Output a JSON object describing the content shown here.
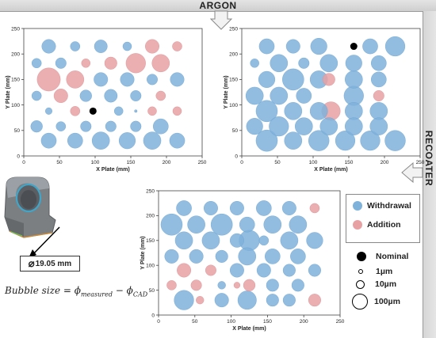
{
  "banner": {
    "top": "ARGON",
    "right": "RECOATER"
  },
  "chart_data": [
    {
      "type": "scatter",
      "xlabel": "X Plate (mm)",
      "ylabel": "Y Plate (mm)",
      "xlim": [
        0,
        250
      ],
      "ylim": [
        0,
        250
      ],
      "xticks": [
        0,
        50,
        100,
        150,
        200,
        250
      ],
      "yticks": [
        0,
        50,
        100,
        150,
        200,
        250
      ],
      "points": [
        {
          "x": 35,
          "y": 215,
          "s": 25,
          "c": "withdrawal"
        },
        {
          "x": 72,
          "y": 215,
          "s": 12,
          "c": "withdrawal"
        },
        {
          "x": 108,
          "y": 215,
          "s": 22,
          "c": "withdrawal"
        },
        {
          "x": 145,
          "y": 215,
          "s": 10,
          "c": "withdrawal"
        },
        {
          "x": 180,
          "y": 215,
          "s": 25,
          "c": "addition"
        },
        {
          "x": 215,
          "y": 215,
          "s": 12,
          "c": "addition"
        },
        {
          "x": 18,
          "y": 182,
          "s": 12,
          "c": "withdrawal"
        },
        {
          "x": 52,
          "y": 182,
          "s": 15,
          "c": "withdrawal"
        },
        {
          "x": 87,
          "y": 182,
          "s": 10,
          "c": "addition"
        },
        {
          "x": 122,
          "y": 182,
          "s": 20,
          "c": "addition"
        },
        {
          "x": 157,
          "y": 182,
          "s": 50,
          "c": "addition"
        },
        {
          "x": 192,
          "y": 182,
          "s": 40,
          "c": "addition"
        },
        {
          "x": 35,
          "y": 150,
          "s": 70,
          "c": "addition"
        },
        {
          "x": 72,
          "y": 150,
          "s": 40,
          "c": "addition"
        },
        {
          "x": 108,
          "y": 150,
          "s": 25,
          "c": "withdrawal"
        },
        {
          "x": 145,
          "y": 150,
          "s": 25,
          "c": "withdrawal"
        },
        {
          "x": 180,
          "y": 150,
          "s": 15,
          "c": "withdrawal"
        },
        {
          "x": 215,
          "y": 150,
          "s": 25,
          "c": "withdrawal"
        },
        {
          "x": 18,
          "y": 118,
          "s": 12,
          "c": "withdrawal"
        },
        {
          "x": 52,
          "y": 118,
          "s": 25,
          "c": "addition"
        },
        {
          "x": 87,
          "y": 118,
          "s": 18,
          "c": "withdrawal"
        },
        {
          "x": 122,
          "y": 118,
          "s": 22,
          "c": "withdrawal"
        },
        {
          "x": 157,
          "y": 118,
          "s": 15,
          "c": "withdrawal"
        },
        {
          "x": 192,
          "y": 118,
          "s": 12,
          "c": "addition"
        },
        {
          "x": 35,
          "y": 88,
          "s": 6,
          "c": "withdrawal"
        },
        {
          "x": 72,
          "y": 88,
          "s": 12,
          "c": "addition"
        },
        {
          "x": 97,
          "y": 88,
          "s": 0,
          "c": "nominal"
        },
        {
          "x": 133,
          "y": 88,
          "s": 10,
          "c": "withdrawal"
        },
        {
          "x": 157,
          "y": 88,
          "s": 1,
          "c": "withdrawal"
        },
        {
          "x": 180,
          "y": 88,
          "s": 10,
          "c": "addition"
        },
        {
          "x": 215,
          "y": 88,
          "s": 10,
          "c": "addition"
        },
        {
          "x": 18,
          "y": 58,
          "s": 18,
          "c": "withdrawal"
        },
        {
          "x": 52,
          "y": 58,
          "s": 12,
          "c": "withdrawal"
        },
        {
          "x": 87,
          "y": 58,
          "s": 15,
          "c": "withdrawal"
        },
        {
          "x": 122,
          "y": 58,
          "s": 15,
          "c": "withdrawal"
        },
        {
          "x": 157,
          "y": 58,
          "s": 15,
          "c": "withdrawal"
        },
        {
          "x": 192,
          "y": 58,
          "s": 30,
          "c": "withdrawal"
        },
        {
          "x": 35,
          "y": 30,
          "s": 30,
          "c": "withdrawal"
        },
        {
          "x": 72,
          "y": 30,
          "s": 30,
          "c": "withdrawal"
        },
        {
          "x": 108,
          "y": 30,
          "s": 40,
          "c": "withdrawal"
        },
        {
          "x": 145,
          "y": 30,
          "s": 35,
          "c": "withdrawal"
        },
        {
          "x": 180,
          "y": 30,
          "s": 40,
          "c": "withdrawal"
        },
        {
          "x": 215,
          "y": 30,
          "s": 30,
          "c": "withdrawal"
        }
      ]
    },
    {
      "type": "scatter",
      "xlabel": "X Plate (mm)",
      "ylabel": "Y Plate (mm)",
      "xlim": [
        0,
        250
      ],
      "ylim": [
        0,
        250
      ],
      "xticks": [
        0,
        50,
        100,
        150,
        200,
        250
      ],
      "yticks": [
        0,
        50,
        100,
        150,
        200,
        250
      ],
      "points": [
        {
          "x": 35,
          "y": 215,
          "s": 30,
          "c": "withdrawal"
        },
        {
          "x": 72,
          "y": 215,
          "s": 25,
          "c": "withdrawal"
        },
        {
          "x": 108,
          "y": 215,
          "s": 35,
          "c": "withdrawal"
        },
        {
          "x": 157,
          "y": 215,
          "s": 0,
          "c": "nominal"
        },
        {
          "x": 180,
          "y": 215,
          "s": 30,
          "c": "withdrawal"
        },
        {
          "x": 215,
          "y": 215,
          "s": 50,
          "c": "withdrawal"
        },
        {
          "x": 18,
          "y": 182,
          "s": 10,
          "c": "withdrawal"
        },
        {
          "x": 52,
          "y": 182,
          "s": 40,
          "c": "withdrawal"
        },
        {
          "x": 87,
          "y": 182,
          "s": 15,
          "c": "withdrawal"
        },
        {
          "x": 122,
          "y": 182,
          "s": 40,
          "c": "withdrawal"
        },
        {
          "x": 157,
          "y": 182,
          "s": 35,
          "c": "withdrawal"
        },
        {
          "x": 192,
          "y": 182,
          "s": 30,
          "c": "withdrawal"
        },
        {
          "x": 35,
          "y": 150,
          "s": 35,
          "c": "withdrawal"
        },
        {
          "x": 72,
          "y": 150,
          "s": 60,
          "c": "withdrawal"
        },
        {
          "x": 108,
          "y": 150,
          "s": 40,
          "c": "withdrawal"
        },
        {
          "x": 122,
          "y": 150,
          "s": 20,
          "c": "addition"
        },
        {
          "x": 157,
          "y": 150,
          "s": 40,
          "c": "withdrawal"
        },
        {
          "x": 192,
          "y": 150,
          "s": 30,
          "c": "withdrawal"
        },
        {
          "x": 18,
          "y": 118,
          "s": 40,
          "c": "withdrawal"
        },
        {
          "x": 52,
          "y": 118,
          "s": 40,
          "c": "withdrawal"
        },
        {
          "x": 87,
          "y": 118,
          "s": 30,
          "c": "withdrawal"
        },
        {
          "x": 157,
          "y": 118,
          "s": 50,
          "c": "withdrawal"
        },
        {
          "x": 192,
          "y": 118,
          "s": 15,
          "c": "addition"
        },
        {
          "x": 35,
          "y": 88,
          "s": 60,
          "c": "withdrawal"
        },
        {
          "x": 72,
          "y": 88,
          "s": 40,
          "c": "withdrawal"
        },
        {
          "x": 108,
          "y": 88,
          "s": 40,
          "c": "withdrawal"
        },
        {
          "x": 125,
          "y": 88,
          "s": 45,
          "c": "addition"
        },
        {
          "x": 157,
          "y": 88,
          "s": 40,
          "c": "withdrawal"
        },
        {
          "x": 192,
          "y": 88,
          "s": 40,
          "c": "withdrawal"
        },
        {
          "x": 18,
          "y": 58,
          "s": 35,
          "c": "withdrawal"
        },
        {
          "x": 52,
          "y": 58,
          "s": 50,
          "c": "withdrawal"
        },
        {
          "x": 87,
          "y": 58,
          "s": 40,
          "c": "withdrawal"
        },
        {
          "x": 122,
          "y": 58,
          "s": 40,
          "c": "withdrawal"
        },
        {
          "x": 157,
          "y": 58,
          "s": 40,
          "c": "withdrawal"
        },
        {
          "x": 192,
          "y": 58,
          "s": 40,
          "c": "withdrawal"
        },
        {
          "x": 35,
          "y": 30,
          "s": 60,
          "c": "withdrawal"
        },
        {
          "x": 72,
          "y": 30,
          "s": 40,
          "c": "withdrawal"
        },
        {
          "x": 108,
          "y": 30,
          "s": 55,
          "c": "withdrawal"
        },
        {
          "x": 145,
          "y": 30,
          "s": 50,
          "c": "withdrawal"
        },
        {
          "x": 180,
          "y": 30,
          "s": 50,
          "c": "withdrawal"
        },
        {
          "x": 215,
          "y": 30,
          "s": 55,
          "c": "withdrawal"
        }
      ]
    },
    {
      "type": "scatter",
      "xlabel": "X Plate (mm)",
      "ylabel": "Y Plate (mm)",
      "xlim": [
        0,
        250
      ],
      "ylim": [
        0,
        250
      ],
      "xticks": [
        0,
        50,
        100,
        150,
        200,
        250
      ],
      "yticks": [
        0,
        50,
        100,
        150,
        200,
        250
      ],
      "points": [
        {
          "x": 35,
          "y": 215,
          "s": 30,
          "c": "withdrawal"
        },
        {
          "x": 72,
          "y": 215,
          "s": 25,
          "c": "withdrawal"
        },
        {
          "x": 108,
          "y": 215,
          "s": 25,
          "c": "withdrawal"
        },
        {
          "x": 145,
          "y": 215,
          "s": 30,
          "c": "withdrawal"
        },
        {
          "x": 180,
          "y": 215,
          "s": 25,
          "c": "withdrawal"
        },
        {
          "x": 215,
          "y": 215,
          "s": 12,
          "c": "addition"
        },
        {
          "x": 18,
          "y": 182,
          "s": 60,
          "c": "withdrawal"
        },
        {
          "x": 52,
          "y": 182,
          "s": 40,
          "c": "withdrawal"
        },
        {
          "x": 87,
          "y": 182,
          "s": 60,
          "c": "withdrawal"
        },
        {
          "x": 122,
          "y": 182,
          "s": 30,
          "c": "withdrawal"
        },
        {
          "x": 157,
          "y": 182,
          "s": 40,
          "c": "withdrawal"
        },
        {
          "x": 192,
          "y": 182,
          "s": 40,
          "c": "withdrawal"
        },
        {
          "x": 35,
          "y": 150,
          "s": 40,
          "c": "withdrawal"
        },
        {
          "x": 72,
          "y": 150,
          "s": 40,
          "c": "withdrawal"
        },
        {
          "x": 108,
          "y": 150,
          "s": 25,
          "c": "withdrawal"
        },
        {
          "x": 125,
          "y": 150,
          "s": 55,
          "c": "withdrawal"
        },
        {
          "x": 145,
          "y": 150,
          "s": 12,
          "c": "withdrawal"
        },
        {
          "x": 180,
          "y": 150,
          "s": 40,
          "c": "withdrawal"
        },
        {
          "x": 215,
          "y": 150,
          "s": 35,
          "c": "withdrawal"
        },
        {
          "x": 18,
          "y": 118,
          "s": 25,
          "c": "withdrawal"
        },
        {
          "x": 52,
          "y": 118,
          "s": 25,
          "c": "withdrawal"
        },
        {
          "x": 87,
          "y": 118,
          "s": 20,
          "c": "withdrawal"
        },
        {
          "x": 122,
          "y": 118,
          "s": 40,
          "c": "withdrawal"
        },
        {
          "x": 157,
          "y": 118,
          "s": 30,
          "c": "withdrawal"
        },
        {
          "x": 192,
          "y": 118,
          "s": 30,
          "c": "withdrawal"
        },
        {
          "x": 35,
          "y": 90,
          "s": 25,
          "c": "addition"
        },
        {
          "x": 72,
          "y": 90,
          "s": 15,
          "c": "addition"
        },
        {
          "x": 108,
          "y": 90,
          "s": 25,
          "c": "withdrawal"
        },
        {
          "x": 145,
          "y": 90,
          "s": 25,
          "c": "withdrawal"
        },
        {
          "x": 180,
          "y": 90,
          "s": 20,
          "c": "withdrawal"
        },
        {
          "x": 215,
          "y": 90,
          "s": 20,
          "c": "withdrawal"
        },
        {
          "x": 18,
          "y": 60,
          "s": 12,
          "c": "addition"
        },
        {
          "x": 52,
          "y": 60,
          "s": 15,
          "c": "addition"
        },
        {
          "x": 87,
          "y": 60,
          "s": 8,
          "c": "withdrawal"
        },
        {
          "x": 108,
          "y": 60,
          "s": 5,
          "c": "addition"
        },
        {
          "x": 125,
          "y": 60,
          "s": 18,
          "c": "addition"
        },
        {
          "x": 157,
          "y": 60,
          "s": 20,
          "c": "withdrawal"
        },
        {
          "x": 192,
          "y": 60,
          "s": 20,
          "c": "withdrawal"
        },
        {
          "x": 35,
          "y": 30,
          "s": 50,
          "c": "withdrawal"
        },
        {
          "x": 57,
          "y": 30,
          "s": 8,
          "c": "addition"
        },
        {
          "x": 87,
          "y": 30,
          "s": 25,
          "c": "withdrawal"
        },
        {
          "x": 122,
          "y": 30,
          "s": 45,
          "c": "withdrawal"
        },
        {
          "x": 157,
          "y": 30,
          "s": 20,
          "c": "withdrawal"
        },
        {
          "x": 180,
          "y": 30,
          "s": 20,
          "c": "withdrawal"
        },
        {
          "x": 215,
          "y": 30,
          "s": 20,
          "c": "addition"
        }
      ]
    }
  ],
  "legend": {
    "withdrawal": "Withdrawal",
    "addition": "Addition",
    "nominal": "Nominal",
    "sizes": [
      {
        "label": "1µm",
        "value": 1
      },
      {
        "label": "10µm",
        "value": 10
      },
      {
        "label": "100µm",
        "value": 100
      }
    ]
  },
  "colors": {
    "withdrawal": "#7fb2da",
    "addition": "#e8a1a3",
    "nominal": "#000000"
  },
  "part": {
    "diameter_label": "19.05 mm"
  },
  "formula": {
    "lhs": "Bubble size = ϕ",
    "measured": "measured",
    "minus": " − ϕ",
    "cad": "CAD"
  }
}
